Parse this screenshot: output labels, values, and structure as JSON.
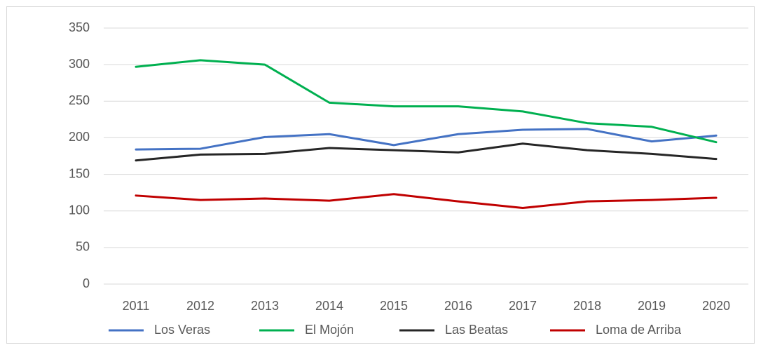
{
  "chart_data": {
    "type": "line",
    "categories": [
      "2011",
      "2012",
      "2013",
      "2014",
      "2015",
      "2016",
      "2017",
      "2018",
      "2019",
      "2020"
    ],
    "series": [
      {
        "name": "Los Veras",
        "color": "#4472c4",
        "values": [
          184,
          185,
          201,
          205,
          190,
          205,
          211,
          212,
          195,
          203
        ]
      },
      {
        "name": "El Mojón",
        "color": "#00b050",
        "values": [
          297,
          306,
          300,
          248,
          243,
          243,
          236,
          220,
          215,
          194
        ]
      },
      {
        "name": "Las Beatas",
        "color": "#262626",
        "values": [
          169,
          177,
          178,
          186,
          183,
          180,
          192,
          183,
          178,
          171
        ]
      },
      {
        "name": "Loma de Arriba",
        "color": "#c00000",
        "values": [
          121,
          115,
          117,
          114,
          123,
          113,
          104,
          113,
          115,
          118
        ]
      }
    ],
    "ylim": [
      0,
      350
    ],
    "yticks": [
      0,
      50,
      100,
      150,
      200,
      250,
      300,
      350
    ],
    "grid": true,
    "legend": "bottom"
  }
}
